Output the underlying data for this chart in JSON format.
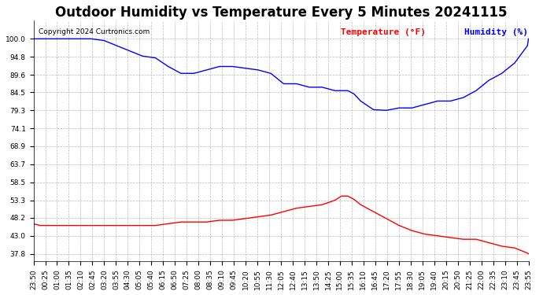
{
  "title": "Outdoor Humidity vs Temperature Every 5 Minutes 20241115",
  "copyright": "Copyright 2024 Curtronics.com",
  "legend_temp": "Temperature (°F)",
  "legend_hum": "Humidity (%)",
  "temp_color": "red",
  "hum_color": "blue",
  "bg_color": "white",
  "grid_color": "#aaaaaa",
  "ylim": [
    35.56,
    105.2
  ],
  "yticks": [
    37.8,
    43.0,
    48.2,
    53.3,
    58.5,
    63.7,
    68.9,
    74.1,
    79.3,
    84.5,
    89.6,
    94.8,
    100.0
  ],
  "time_labels": [
    "23:50",
    "00:25",
    "01:00",
    "01:35",
    "02:10",
    "02:45",
    "03:20",
    "03:55",
    "04:30",
    "05:05",
    "05:40",
    "06:15",
    "06:50",
    "07:25",
    "08:00",
    "08:35",
    "09:10",
    "09:45",
    "10:20",
    "10:55",
    "11:30",
    "12:05",
    "12:40",
    "13:15",
    "13:50",
    "14:25",
    "15:00",
    "15:35",
    "16:10",
    "16:45",
    "17:20",
    "17:55",
    "18:30",
    "19:05",
    "19:40",
    "20:15",
    "20:50",
    "21:25",
    "22:00",
    "22:35",
    "23:10",
    "23:45",
    "23:55"
  ],
  "humidity_data": {
    "x": [
      0,
      6,
      18,
      30,
      42,
      54,
      66,
      78,
      90,
      102,
      114,
      126,
      138,
      150,
      162,
      174,
      186,
      198,
      210,
      222,
      234,
      246,
      258,
      270,
      282,
      288,
      294,
      300,
      306,
      318,
      330,
      342,
      354,
      366,
      378,
      390,
      402,
      414,
      426,
      438,
      450,
      462,
      463
    ],
    "y": [
      100,
      100,
      100,
      100,
      100,
      100,
      99.5,
      98,
      96.5,
      95,
      94.5,
      92,
      90,
      90,
      91,
      92,
      92,
      91.5,
      91,
      90,
      87,
      87,
      86,
      86,
      85,
      85,
      85,
      84,
      82,
      79.5,
      79.3,
      80,
      80,
      81,
      82,
      82,
      83,
      85,
      88,
      90,
      93,
      98,
      100
    ]
  },
  "temp_data": {
    "x": [
      0,
      6,
      18,
      30,
      42,
      54,
      66,
      78,
      90,
      102,
      114,
      126,
      138,
      150,
      162,
      174,
      186,
      198,
      210,
      222,
      234,
      246,
      258,
      270,
      282,
      288,
      294,
      300,
      306,
      318,
      330,
      342,
      354,
      366,
      378,
      390,
      402,
      414,
      426,
      438,
      450,
      462,
      463
    ],
    "y": [
      46.5,
      46,
      46,
      46,
      46,
      46,
      46,
      46,
      46,
      46,
      46,
      46.5,
      47,
      47,
      47,
      47.5,
      47.5,
      48,
      48.5,
      49,
      50,
      51,
      51.5,
      52,
      53.3,
      54.5,
      54.5,
      53.5,
      52,
      50,
      48,
      46,
      44.5,
      43.5,
      43,
      42.5,
      42,
      42,
      41,
      40,
      39.5,
      38,
      37.8
    ]
  },
  "title_fontsize": 12,
  "tick_fontsize": 6.5,
  "ylabel_fontsize": 7,
  "legend_fontsize": 8
}
